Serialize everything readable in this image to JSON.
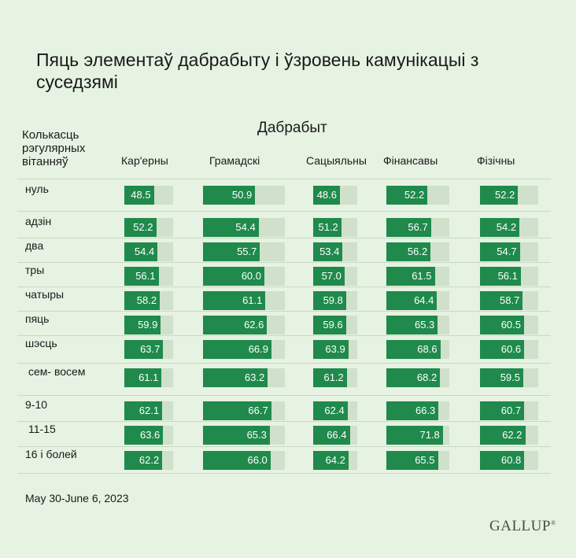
{
  "logo_text": "GALLUP",
  "date_text": "May 30-June 6, 2023",
  "chart_data": {
    "type": "bar",
    "title": "Пяць элементаў дабрабыту і ўзровень камунікацыі з суседзямі",
    "row_header": "Колькасць рэгулярных вітанняў",
    "column_group": "Дабрабыт",
    "columns": [
      "Кар'ерны",
      "Грамадскі",
      "Сацыяльны",
      "Фінансавы",
      "Фізічны"
    ],
    "rows": [
      "нуль",
      "адзін",
      "два",
      "тры",
      "чатыры",
      "пяць",
      "шэсць",
      "сем- восем",
      "9-10",
      "11-15",
      "16 і болей"
    ],
    "value_range": [
      0,
      100
    ],
    "series": [
      {
        "name": "Кар'ерны",
        "values": [
          48.5,
          52.2,
          54.4,
          56.1,
          58.2,
          59.9,
          63.7,
          61.1,
          62.1,
          63.6,
          62.2
        ]
      },
      {
        "name": "Грамадскі",
        "values": [
          50.9,
          54.4,
          55.7,
          60.0,
          61.1,
          62.6,
          66.9,
          63.2,
          66.7,
          65.3,
          66.0
        ]
      },
      {
        "name": "Сацыяльны",
        "values": [
          48.6,
          51.2,
          53.4,
          57.0,
          59.8,
          59.6,
          63.9,
          61.2,
          62.4,
          66.4,
          64.2
        ]
      },
      {
        "name": "Фінансавы",
        "values": [
          52.2,
          56.7,
          56.2,
          61.5,
          64.4,
          65.3,
          68.6,
          68.2,
          66.3,
          71.8,
          65.5
        ]
      },
      {
        "name": "Фізічны",
        "values": [
          52.2,
          54.2,
          54.7,
          56.1,
          58.7,
          60.5,
          60.6,
          59.5,
          60.7,
          62.2,
          60.8
        ]
      }
    ],
    "value_format": "one-decimal",
    "colors": {
      "bar": "#1f8a4c",
      "track": "#cfe0cb",
      "background": "#e6f2e2"
    }
  }
}
